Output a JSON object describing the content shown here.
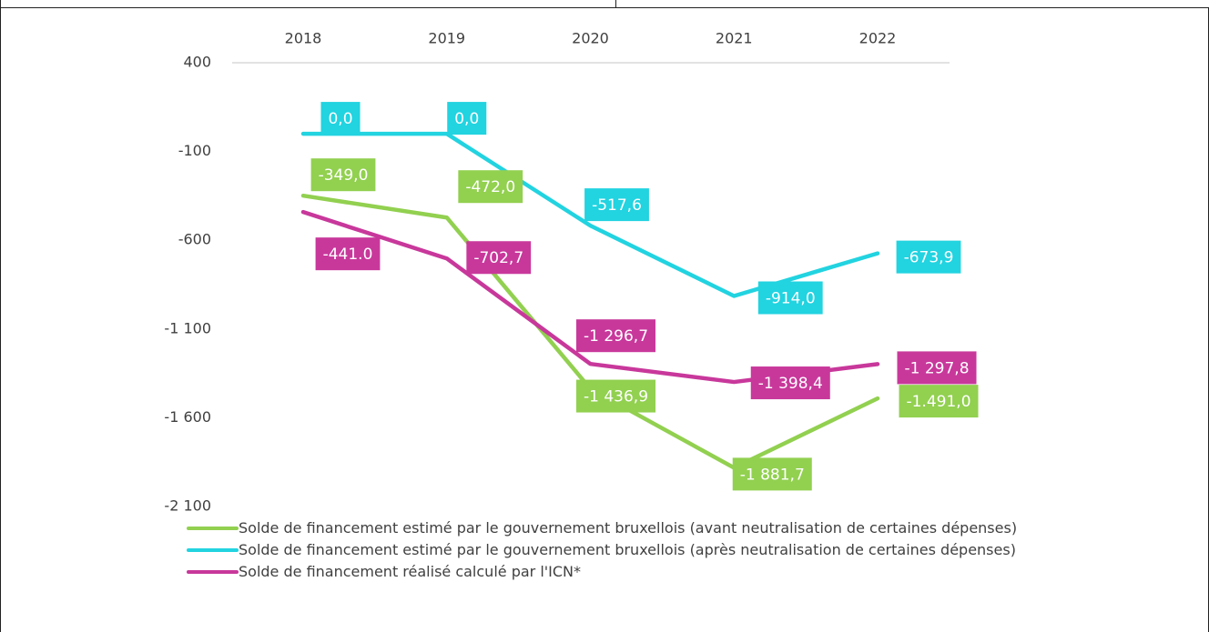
{
  "chart_data": {
    "type": "line",
    "categories": [
      "2018",
      "2019",
      "2020",
      "2021",
      "2022"
    ],
    "ylim": [
      -2100,
      400
    ],
    "yticks": [
      400,
      -100,
      -600,
      {
        "value": -1100,
        "label": "-1 100"
      },
      {
        "value": -1600,
        "label": "-1 600"
      },
      {
        "value": -2100,
        "label": "-2 100"
      }
    ],
    "series": [
      {
        "name": "Solde de financement estimé  par le gouvernement bruxellois (avant neutralisation de certaines dépenses)",
        "color": "#92d050",
        "values": [
          -349,
          -472,
          -1436.9,
          -1881.7,
          -1491
        ],
        "value_labels": [
          "-349,0",
          "-472,0",
          "-1 436,9",
          "-1 881,7",
          "-1.491,0"
        ]
      },
      {
        "name": "Solde de financement estimé par le gouvernement bruxellois (après neutralisation de certaines dépenses)",
        "color": "#22d3e0",
        "values": [
          0,
          0,
          -517.6,
          -914,
          -673.9
        ],
        "value_labels": [
          "0,0",
          "0,0",
          "-517,6",
          "-914,0",
          "-673,9"
        ]
      },
      {
        "name": "Solde de financement réalisé calculé par l'ICN*",
        "color": "#c8389b",
        "values": [
          -441,
          -702.7,
          -1296.7,
          -1398.4,
          -1297.8
        ],
        "value_labels": [
          "-441.0",
          "-702,7",
          "-1 296,7",
          "-1 398,4",
          "-1 297,8"
        ]
      }
    ],
    "legend": "bottom"
  }
}
